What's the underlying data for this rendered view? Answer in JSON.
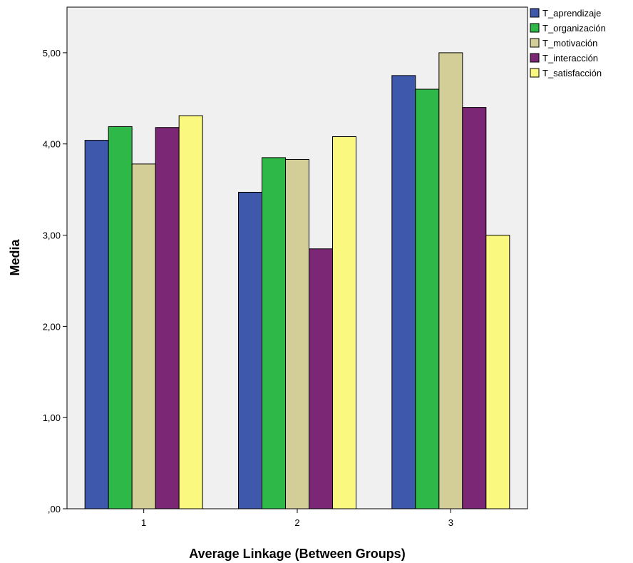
{
  "chart_data": {
    "type": "bar",
    "xlabel": "Average Linkage (Between Groups)",
    "ylabel": "Media",
    "categories": [
      "1",
      "2",
      "3"
    ],
    "ylim": [
      0,
      5.5
    ],
    "yticks": [
      0,
      1,
      2,
      3,
      4,
      5
    ],
    "ytick_labels": [
      ",00",
      "1,00",
      "2,00",
      "3,00",
      "4,00",
      "5,00"
    ],
    "grid": false,
    "legend_position": "top-right",
    "plot_background": "#f0f0f0",
    "series": [
      {
        "name": "T_aprendizaje",
        "color": "#3e58ac",
        "values": [
          4.04,
          3.47,
          4.75
        ]
      },
      {
        "name": "T_organización",
        "color": "#2eb848",
        "values": [
          4.19,
          3.85,
          4.6
        ]
      },
      {
        "name": "T_motivación",
        "color": "#d3ce97",
        "values": [
          3.78,
          3.83,
          5.0
        ]
      },
      {
        "name": "T_interacción",
        "color": "#7b2775",
        "values": [
          4.18,
          2.85,
          4.4
        ]
      },
      {
        "name": "T_satisfacción",
        "color": "#fbf87f",
        "values": [
          4.31,
          4.08,
          3.0
        ]
      }
    ]
  }
}
